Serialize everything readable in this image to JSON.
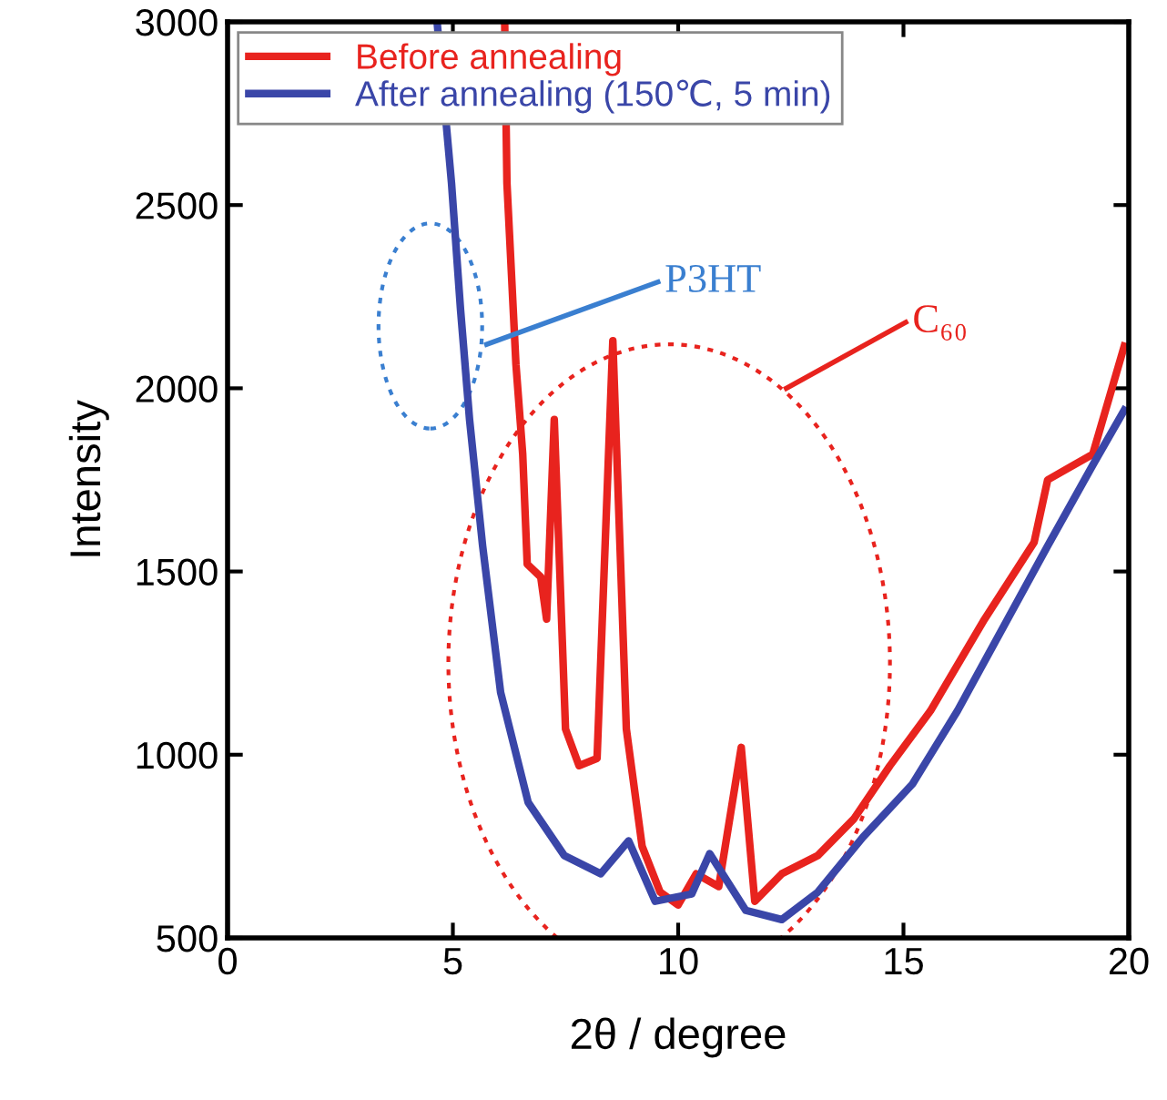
{
  "chart_data": {
    "type": "line",
    "xlabel": "2θ / degree",
    "ylabel": "Intensity",
    "xlim": [
      0,
      20
    ],
    "ylim": [
      500,
      3000
    ],
    "xticks": [
      0,
      5,
      10,
      15,
      20
    ],
    "yticks": [
      500,
      1000,
      1500,
      2000,
      2500,
      3000
    ],
    "grid": false,
    "legend": "top left",
    "marker": "none",
    "line_style": "solid",
    "series": [
      {
        "name": "Before annealing",
        "color": "#e8231e",
        "x": [
          6.15,
          6.2,
          6.4,
          6.55,
          6.65,
          6.95,
          7.08,
          7.25,
          7.5,
          7.8,
          8.2,
          8.55,
          8.85,
          9.2,
          9.6,
          10.0,
          10.4,
          10.9,
          11.4,
          11.7,
          12.3,
          13.1,
          13.9,
          14.7,
          15.6,
          16.8,
          17.9,
          18.2,
          19.2,
          19.9
        ],
        "values": [
          3000,
          2560,
          2065,
          1820,
          1520,
          1485,
          1370,
          1915,
          1070,
          970,
          990,
          2130,
          1070,
          750,
          625,
          590,
          675,
          640,
          1020,
          600,
          675,
          725,
          825,
          970,
          1120,
          1370,
          1580,
          1750,
          1820,
          2115
        ]
      },
      {
        "name": "After annealing (150℃, 5 min)",
        "color": "#3a46a8",
        "x": [
          4.65,
          4.97,
          5.17,
          5.37,
          5.66,
          6.06,
          6.67,
          7.47,
          8.28,
          8.9,
          9.49,
          10.3,
          10.7,
          11.5,
          12.3,
          13.1,
          14.1,
          15.2,
          16.2,
          17.2,
          18.2,
          19.2,
          19.9
        ],
        "values": [
          3000,
          2560,
          2215,
          1915,
          1570,
          1170,
          870,
          725,
          675,
          765,
          600,
          620,
          730,
          575,
          550,
          625,
          775,
          920,
          1120,
          1345,
          1570,
          1790,
          1940
        ]
      }
    ],
    "annotations": [
      "P3HT",
      "C₆₀"
    ]
  }
}
